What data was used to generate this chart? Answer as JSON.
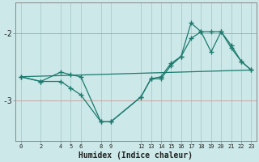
{
  "xlabel": "Humidex (Indice chaleur)",
  "bg_color": "#cce8e8",
  "grid_color_v": "#aacccc",
  "grid_color_h": "#cc9999",
  "line_color": "#1a7a6e",
  "xticks": [
    0,
    2,
    4,
    5,
    6,
    8,
    9,
    12,
    13,
    14,
    15,
    16,
    17,
    18,
    19,
    20,
    21,
    22,
    23
  ],
  "yticks": [
    -2,
    -3
  ],
  "ylim": [
    -3.6,
    -1.55
  ],
  "xlim": [
    -0.5,
    23.5
  ],
  "line1_x": [
    0,
    2,
    4,
    5,
    6,
    8,
    9,
    12,
    13,
    14,
    15,
    16,
    17,
    18,
    19,
    20,
    21,
    22,
    23
  ],
  "line1_y": [
    -2.65,
    -2.72,
    -2.72,
    -2.82,
    -2.92,
    -3.32,
    -3.32,
    -2.95,
    -2.68,
    -2.68,
    -2.48,
    -2.35,
    -2.08,
    -1.98,
    -2.28,
    -1.98,
    -2.18,
    -2.42,
    -2.55
  ],
  "line2_x": [
    0,
    2,
    4,
    5,
    6,
    8,
    9,
    12,
    13,
    14,
    15,
    16,
    17,
    18,
    19,
    20,
    21,
    22,
    23
  ],
  "line2_y": [
    -2.65,
    -2.72,
    -2.58,
    -2.62,
    -2.65,
    -3.32,
    -3.32,
    -2.95,
    -2.68,
    -2.65,
    -2.45,
    -2.35,
    -1.85,
    -1.98,
    -1.98,
    -1.98,
    -2.22,
    -2.42,
    -2.55
  ],
  "line3_x": [
    0,
    23
  ],
  "line3_y": [
    -2.65,
    -2.55
  ]
}
